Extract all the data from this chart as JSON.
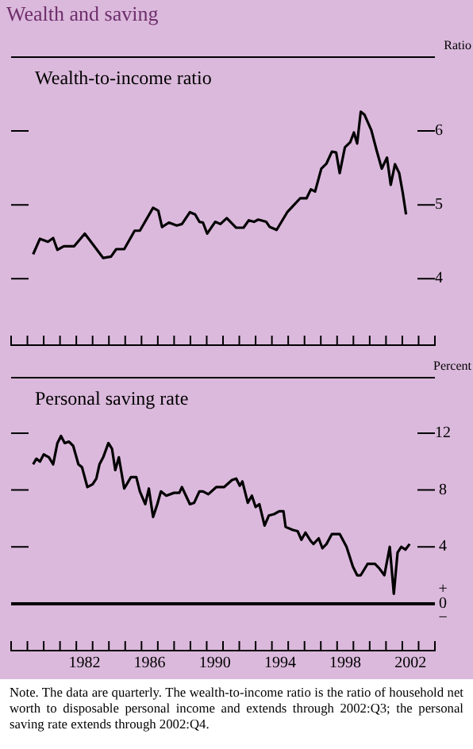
{
  "chart_data": [
    {
      "type": "line",
      "title": "Wealth and saving",
      "subtitle": "Wealth-to-income ratio",
      "ylabel": "Ratio",
      "legend": false,
      "grid": false,
      "tick_labels": "y",
      "xlim": [
        1978,
        2004
      ],
      "ylim": [
        3.1,
        7
      ],
      "yticks": [
        4,
        5,
        6
      ],
      "xticks": [
        {
          "value": 1978,
          "label": null
        },
        {
          "value": 1979,
          "label": null
        },
        {
          "value": 1980,
          "label": null
        },
        {
          "value": 1981,
          "label": null
        },
        {
          "value": 1982,
          "label": null
        },
        {
          "value": 1983,
          "label": null
        },
        {
          "value": 1984,
          "label": null
        },
        {
          "value": 1985,
          "label": null
        },
        {
          "value": 1986,
          "label": null
        },
        {
          "value": 1987,
          "label": null
        },
        {
          "value": 1988,
          "label": null
        },
        {
          "value": 1989,
          "label": null
        },
        {
          "value": 1990,
          "label": null
        },
        {
          "value": 1991,
          "label": null
        },
        {
          "value": 1992,
          "label": null
        },
        {
          "value": 1993,
          "label": null
        },
        {
          "value": 1994,
          "label": null
        },
        {
          "value": 1995,
          "label": null
        },
        {
          "value": 1996,
          "label": null
        },
        {
          "value": 1997,
          "label": null
        },
        {
          "value": 1998,
          "label": null
        },
        {
          "value": 1999,
          "label": null
        },
        {
          "value": 2000,
          "label": null
        },
        {
          "value": 2001,
          "label": null
        },
        {
          "value": 2002,
          "label": null
        },
        {
          "value": 2003,
          "label": null
        },
        {
          "value": 2004,
          "label": null
        }
      ],
      "series": [
        {
          "color": "#000000",
          "x": [
            1979.35,
            1979.77,
            1980.26,
            1980.58,
            1980.84,
            1981.23,
            1981.87,
            1982.52,
            1983.0,
            1983.65,
            1984.13,
            1984.45,
            1984.94,
            1985.58,
            1985.9,
            1986.71,
            1987.03,
            1987.26,
            1987.68,
            1988.16,
            1988.48,
            1988.97,
            1989.29,
            1989.55,
            1989.77,
            1990.03,
            1990.52,
            1990.84,
            1991.23,
            1991.81,
            1992.26,
            1992.58,
            1992.9,
            1993.16,
            1993.65,
            1993.87,
            1994.29,
            1994.94,
            1995.74,
            1996.13,
            1996.39,
            1996.65,
            1997.03,
            1997.35,
            1997.68,
            1997.94,
            1998.16,
            1998.48,
            1998.81,
            1999.03,
            1999.23,
            1999.45,
            1999.68,
            2000.1,
            2000.42,
            2000.74,
            2001.06,
            2001.29,
            2001.55,
            2001.81,
            2002.03,
            2002.23
          ],
          "values": [
            4.33,
            4.54,
            4.5,
            4.55,
            4.39,
            4.44,
            4.44,
            4.61,
            4.47,
            4.28,
            4.3,
            4.4,
            4.4,
            4.65,
            4.65,
            4.96,
            4.92,
            4.7,
            4.76,
            4.72,
            4.74,
            4.9,
            4.87,
            4.77,
            4.76,
            4.61,
            4.77,
            4.74,
            4.82,
            4.69,
            4.69,
            4.79,
            4.77,
            4.8,
            4.77,
            4.7,
            4.66,
            4.9,
            5.09,
            5.09,
            5.21,
            5.18,
            5.49,
            5.56,
            5.72,
            5.71,
            5.43,
            5.78,
            5.85,
            5.98,
            5.83,
            6.26,
            6.22,
            6.01,
            5.74,
            5.49,
            5.64,
            5.27,
            5.55,
            5.43,
            5.16,
            4.87
          ]
        }
      ]
    },
    {
      "type": "line",
      "title": "Personal saving rate",
      "ylabel": "Percent",
      "legend": false,
      "grid": false,
      "xlim": [
        1978,
        2004
      ],
      "ylim": [
        -3.3,
        15.9
      ],
      "yticks": [
        {
          "value": 0,
          "label": "+\n0\n−"
        },
        4,
        8,
        12
      ],
      "xticks": [
        {
          "value": 1978,
          "label": null
        },
        {
          "value": 1979,
          "label": null
        },
        {
          "value": 1980,
          "label": null
        },
        {
          "value": 1981,
          "label": null
        },
        {
          "value": 1982,
          "label": null
        },
        {
          "value": 1983,
          "label": null
        },
        {
          "value": 1984,
          "label": null
        },
        {
          "value": 1985,
          "label": null
        },
        {
          "value": 1986,
          "label": null
        },
        {
          "value": 1987,
          "label": null
        },
        {
          "value": 1988,
          "label": null
        },
        {
          "value": 1989,
          "label": null
        },
        {
          "value": 1990,
          "label": null
        },
        {
          "value": 1991,
          "label": null
        },
        {
          "value": 1992,
          "label": null
        },
        {
          "value": 1993,
          "label": null
        },
        {
          "value": 1994,
          "label": null
        },
        {
          "value": 1995,
          "label": null
        },
        {
          "value": 1996,
          "label": null
        },
        {
          "value": 1997,
          "label": null
        },
        {
          "value": 1998,
          "label": null
        },
        {
          "value": 1999,
          "label": null
        },
        {
          "value": 2000,
          "label": null
        },
        {
          "value": 2001,
          "label": null
        },
        {
          "value": 2002,
          "label": null
        },
        {
          "value": 2003,
          "label": null
        },
        {
          "value": 2004,
          "label": null
        },
        {
          "value": 1982.5,
          "label": "1982"
        },
        {
          "value": 1986.5,
          "label": "1986"
        },
        {
          "value": 1990.5,
          "label": "1990"
        },
        {
          "value": 1994.5,
          "label": "1994"
        },
        {
          "value": 1998.5,
          "label": "1998"
        },
        {
          "value": 2002.5,
          "label": "2002"
        }
      ],
      "ref_lines": [
        {
          "axis": "y",
          "value": 0,
          "color": "#000000"
        }
      ],
      "annotations": [
        "Note. The data are quarterly. The wealth-to-income ratio is the ratio of household net worth to disposable personal income and extends through 2002:Q3; the personal saving rate extends through 2002:Q4."
      ],
      "series": [
        {
          "color": "#000000",
          "x": [
            1979.35,
            1979.55,
            1979.77,
            1980.0,
            1980.32,
            1980.58,
            1980.84,
            1981.06,
            1981.29,
            1981.55,
            1981.81,
            1982.13,
            1982.35,
            1982.68,
            1983.0,
            1983.23,
            1983.42,
            1983.65,
            1983.97,
            1984.19,
            1984.39,
            1984.61,
            1984.94,
            1985.35,
            1985.68,
            1985.9,
            1986.23,
            1986.45,
            1986.71,
            1986.97,
            1987.19,
            1987.52,
            1988.0,
            1988.32,
            1988.48,
            1988.97,
            1989.23,
            1989.55,
            1989.77,
            1990.1,
            1990.58,
            1990.9,
            1991.06,
            1991.55,
            1991.81,
            1992.03,
            1992.19,
            1992.52,
            1992.77,
            1993.0,
            1993.23,
            1993.55,
            1993.81,
            1994.13,
            1994.45,
            1994.71,
            1994.84,
            1995.26,
            1995.58,
            1995.81,
            1996.06,
            1996.39,
            1996.55,
            1996.87,
            1997.1,
            1997.35,
            1997.68,
            1998.16,
            1998.58,
            1998.97,
            1999.23,
            1999.45,
            1999.87,
            2000.32,
            2000.58,
            2000.9,
            2001.23,
            2001.48,
            2001.71,
            2001.94,
            2002.19,
            2002.45
          ],
          "values": [
            9.8,
            10.2,
            10.0,
            10.5,
            10.3,
            9.8,
            11.3,
            11.8,
            11.3,
            11.4,
            11.1,
            9.8,
            9.6,
            8.2,
            8.4,
            8.8,
            9.8,
            10.3,
            11.3,
            10.9,
            9.4,
            10.3,
            8.1,
            8.9,
            8.9,
            7.9,
            7.0,
            8.1,
            6.1,
            7.0,
            7.9,
            7.6,
            7.8,
            7.8,
            8.2,
            7.0,
            7.1,
            7.9,
            7.9,
            7.7,
            8.2,
            8.2,
            8.2,
            8.7,
            8.8,
            8.3,
            8.6,
            7.1,
            7.6,
            6.8,
            7.0,
            5.5,
            6.2,
            6.3,
            6.5,
            6.5,
            5.4,
            5.2,
            5.1,
            4.5,
            5.0,
            4.4,
            4.2,
            4.6,
            3.9,
            4.2,
            4.9,
            4.9,
            4.0,
            2.6,
            2.0,
            2.0,
            2.8,
            2.8,
            2.5,
            2.0,
            4.0,
            0.7,
            3.6,
            4.0,
            3.8,
            4.2
          ]
        }
      ]
    }
  ]
}
